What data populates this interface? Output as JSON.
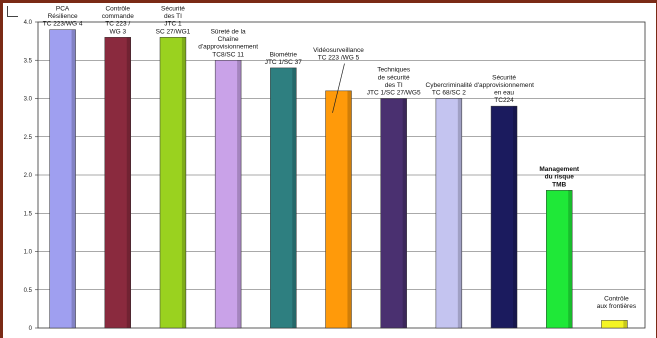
{
  "chart_data": {
    "type": "bar",
    "ylim": [
      0,
      4.0
    ],
    "yticks": [
      0,
      0.5,
      1.0,
      1.5,
      2.0,
      2.5,
      3.0,
      3.5,
      4.0
    ],
    "ytick_labels": [
      "0",
      "0.5",
      "1.0",
      "1.5",
      "2.0",
      "2.5",
      "3.0",
      "3.5",
      "4.0"
    ],
    "grid": true,
    "categories": [
      "PCA Résilience TC 223/WG 4",
      "Contrôle commande TC 223 / WG 3",
      "Sécurité des TI JTC 1 SC 27/WG1",
      "Sûreté de la Chaîne d'approvisionnement TC8/SC 11",
      "Biométrie JTC 1/SC 37",
      "Vidéosurveillance TC 223 /WG 5",
      "Techniques de sécurité des TI JTC 1/SC 27/WG5",
      "Cybercriminalité TC 68/SC 2",
      "Sécurité d'approvisionnement en eau TC224",
      "Management du risque TMB",
      "Contrôle aux frontières"
    ],
    "values": [
      3.9,
      3.8,
      3.8,
      3.5,
      3.4,
      3.1,
      3.0,
      3.0,
      2.9,
      1.8,
      0.1
    ],
    "colors": [
      "#9f9ff0",
      "#8a2a3e",
      "#9ad21f",
      "#c9a2e8",
      "#2e7f80",
      "#ff9a0a",
      "#4a3070",
      "#c4c4f0",
      "#1b1b5e",
      "#1fe838",
      "#f4f424"
    ],
    "labels": [
      [
        "PCA",
        "Résilience",
        "TC 223/WG 4"
      ],
      [
        "Contrôle",
        "commande",
        "TC 223 /",
        "WG 3"
      ],
      [
        "Sécurité",
        "des TI",
        "JTC 1",
        "SC 27/WG1"
      ],
      [
        "Sûreté de la",
        "Chaîne",
        "d'approvisionnement",
        "TC8/SC 11"
      ],
      [
        "Biométrie",
        "JTC 1/SC 37"
      ],
      [
        "Vidéosurveillance",
        "TC 223 /WG 5"
      ],
      [
        "Techniques",
        "de sécurité",
        "des TI",
        "JTC 1/SC 27/WG5"
      ],
      [
        "Cybercriminalité",
        "TC 68/SC 2"
      ],
      [
        "Sécurité",
        "d'approvisionnement",
        "en eau",
        "TC224"
      ],
      [
        "Management",
        "du risque",
        "TMB"
      ],
      [
        "Contrôle",
        "aux frontières"
      ]
    ],
    "bold_labels": [
      9
    ]
  }
}
